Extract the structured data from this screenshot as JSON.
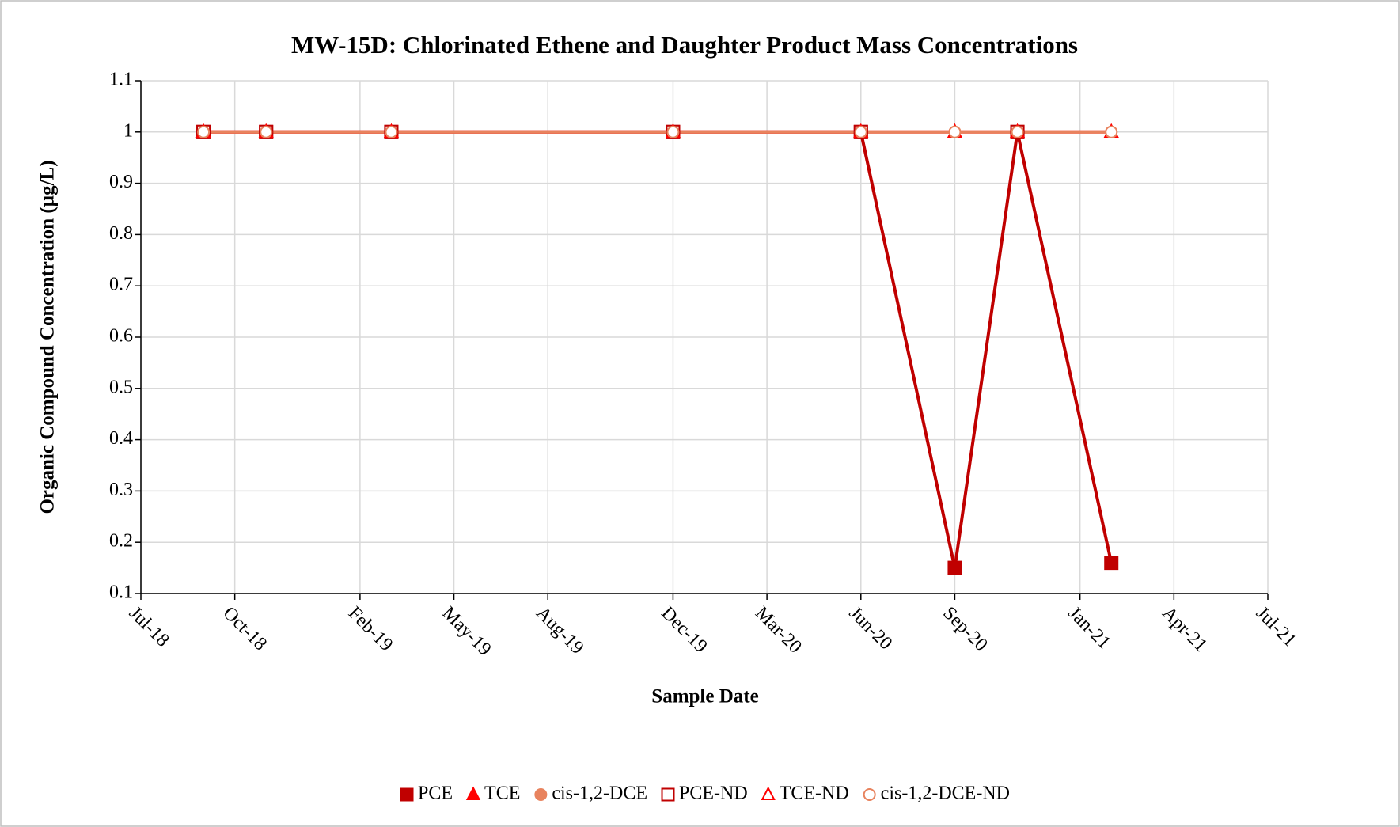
{
  "chart_data": {
    "type": "line",
    "title": "MW-15D: Chlorinated Ethene and Daughter Product Mass Concentrations",
    "x_label": "Sample Date",
    "y_label": "Organic Compound Concentration (µg/L)",
    "x": [
      "2018-09",
      "2018-11",
      "2019-03",
      "2019-12",
      "2020-06",
      "2020-09",
      "2020-11",
      "2021-02"
    ],
    "series": [
      {
        "name": "PCE",
        "color": "#c00000",
        "line": true,
        "marker": "square",
        "filled": true,
        "values": [
          1,
          1,
          1,
          1,
          1,
          0.15,
          1,
          0.16
        ]
      },
      {
        "name": "TCE",
        "color": "#ff0000",
        "line": true,
        "marker": "triangle",
        "filled": true,
        "values": [
          1,
          1,
          1,
          1,
          1,
          1,
          1,
          1
        ]
      },
      {
        "name": "cis-1,2-DCE",
        "color": "#e8835e",
        "line": true,
        "marker": "circle",
        "filled": true,
        "values": [
          1,
          1,
          1,
          1,
          1,
          1,
          1,
          1
        ]
      },
      {
        "name": "PCE-ND",
        "color": "#c00000",
        "line": false,
        "marker": "square",
        "filled": false,
        "values": [
          1,
          1,
          1,
          1,
          1,
          null,
          1,
          null
        ]
      },
      {
        "name": "TCE-ND",
        "color": "#ff0000",
        "line": false,
        "marker": "triangle",
        "filled": false,
        "values": [
          1,
          1,
          1,
          1,
          1,
          1,
          1,
          1
        ]
      },
      {
        "name": "cis-1,2-DCE-ND",
        "color": "#e8835e",
        "line": false,
        "marker": "circle",
        "filled": false,
        "values": [
          1,
          1,
          1,
          1,
          1,
          1,
          1,
          1
        ]
      }
    ],
    "xlim": [
      "2018-07",
      "2021-07"
    ],
    "xticks": [
      {
        "value": "2018-07",
        "label": "Jul-18"
      },
      {
        "value": "2018-10",
        "label": "Oct-18"
      },
      {
        "value": "2019-02",
        "label": "Feb-19"
      },
      {
        "value": "2019-05",
        "label": "May-19"
      },
      {
        "value": "2019-08",
        "label": "Aug-19"
      },
      {
        "value": "2019-12",
        "label": "Dec-19"
      },
      {
        "value": "2020-03",
        "label": "Mar-20"
      },
      {
        "value": "2020-06",
        "label": "Jun-20"
      },
      {
        "value": "2020-09",
        "label": "Sep-20"
      },
      {
        "value": "2021-01",
        "label": "Jan-21"
      },
      {
        "value": "2021-04",
        "label": "Apr-21"
      },
      {
        "value": "2021-07",
        "label": "Jul-21"
      }
    ],
    "ylim": [
      0.1,
      1.1
    ],
    "yticks": [
      0.1,
      0.2,
      0.3,
      0.4,
      0.5,
      0.6,
      0.7,
      0.8,
      0.9,
      1,
      1.1
    ],
    "grid": true,
    "legend": "bottom"
  }
}
